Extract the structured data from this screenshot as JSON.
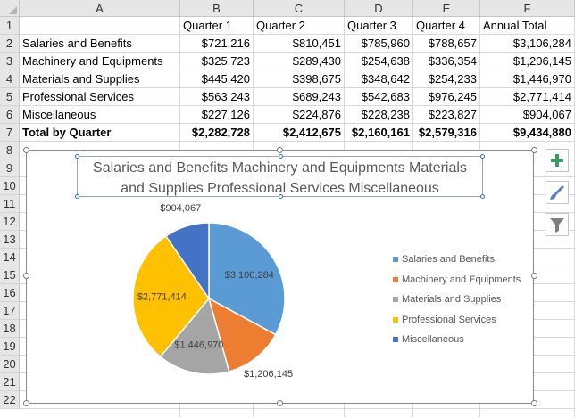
{
  "columns": [
    "A",
    "B",
    "C",
    "D",
    "E",
    "F"
  ],
  "rows": [
    "1",
    "2",
    "3",
    "4",
    "5",
    "6",
    "7",
    "8",
    "9",
    "10",
    "11",
    "12",
    "13",
    "14",
    "15",
    "16",
    "17",
    "18",
    "19",
    "20",
    "21",
    "22"
  ],
  "table": {
    "header": [
      "",
      "Quarter 1",
      "Quarter 2",
      "Quarter 3",
      "Quarter 4",
      "Annual Total"
    ],
    "body": [
      [
        "Salaries and Benefits",
        "$721,216",
        "$810,451",
        "$785,960",
        "$788,657",
        "$3,106,284"
      ],
      [
        "Machinery and Equipments",
        "$325,723",
        "$289,430",
        "$254,638",
        "$336,354",
        "$1,206,145"
      ],
      [
        "Materials and Supplies",
        "$445,420",
        "$398,675",
        "$348,642",
        "$254,233",
        "$1,446,970"
      ],
      [
        "Professional Services",
        "$563,243",
        "$689,243",
        "$542,683",
        "$976,245",
        "$2,771,414"
      ],
      [
        "Miscellaneous",
        "$227,126",
        "$224,876",
        "$228,238",
        "$223,827",
        "$904,067"
      ],
      [
        "Total by Quarter",
        "$2,282,728",
        "$2,412,675",
        "$2,160,161",
        "$2,579,316",
        "$9,434,880"
      ]
    ]
  },
  "side_buttons": [
    {
      "icon": "plus-icon"
    },
    {
      "icon": "brush-icon"
    },
    {
      "icon": "filter-icon"
    }
  ],
  "chart_data": {
    "type": "pie",
    "title_lines": [
      "Salaries and Benefits Machinery and Equipments Materials",
      "and Supplies Professional Services Miscellaneous"
    ],
    "labels": [
      "Salaries and Benefits",
      "Machinery and Equipments",
      "Materials and Supplies",
      "Professional Services",
      "Miscellaneous"
    ],
    "values": [
      3106284,
      1206145,
      1446970,
      2771414,
      904067
    ],
    "data_labels": [
      "$3,106,284",
      "$1,206,145",
      "$1,446,970",
      "$2,771,414",
      "$904,067"
    ],
    "colors": [
      "#5b9bd5",
      "#ed7d31",
      "#a5a5a5",
      "#ffc000",
      "#4472c4"
    ],
    "legend_position": "right"
  }
}
